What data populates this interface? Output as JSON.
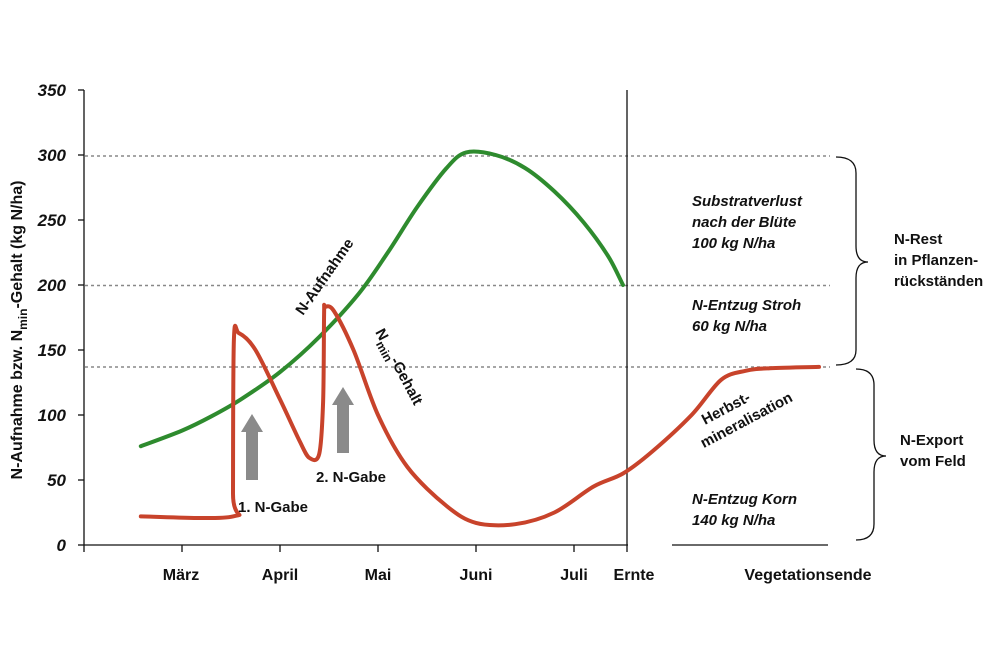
{
  "chart_data": {
    "type": "line",
    "ylabel": "N-Aufnahme bzw. N",
    "ylabel_sub": "min",
    "ylabel_tail": "-Gehalt (kg N/ha)",
    "ylim": [
      0,
      350
    ],
    "yticks": [
      "0",
      "50",
      "100",
      "150",
      "200",
      "250",
      "300",
      "350"
    ],
    "xticks": [
      "März",
      "April",
      "Mai",
      "Juni",
      "Juli",
      "Ernte",
      "Vegetationsende"
    ],
    "reference_lines": [
      300,
      200,
      137
    ],
    "series": [
      {
        "name": "N-Aufnahme",
        "color": "#2e8b2e",
        "x": [
          -0.42,
          0.0,
          0.3,
          0.6,
          1.0,
          1.4,
          1.8,
          2.1,
          2.4,
          2.7,
          2.9,
          3.2,
          3.5,
          3.8,
          4.1,
          4.35,
          4.5
        ],
        "values": [
          76,
          88,
          99,
          112,
          133,
          160,
          193,
          225,
          260,
          290,
          302,
          300,
          290,
          272,
          248,
          222,
          200
        ]
      },
      {
        "name_main": "N",
        "name_sub": "min",
        "name_tail": "-Gehalt",
        "color": "#c8432b",
        "x": [
          -0.42,
          0.52,
          0.52,
          0.53,
          0.58,
          0.75,
          1.0,
          1.2,
          1.3,
          1.4,
          1.44,
          1.45,
          1.46,
          1.55,
          1.75,
          2.0,
          2.3,
          2.7,
          3.0,
          3.4,
          3.8,
          4.2,
          4.5,
          4.8,
          5.2,
          5.5,
          5.75,
          6.0,
          6.5
        ],
        "values": [
          22,
          22,
          40,
          158,
          163,
          150,
          112,
          80,
          67,
          70,
          110,
          178,
          183,
          180,
          150,
          100,
          60,
          30,
          17,
          16,
          25,
          45,
          55,
          72,
          100,
          127,
          134,
          136,
          137
        ]
      }
    ],
    "annotations": {
      "substratverlust": [
        "Substratverlust",
        "nach der Blüte",
        "100 kg N/ha"
      ],
      "entzug_stroh": [
        "N-Entzug Stroh",
        "60 kg N/ha"
      ],
      "entzug_korn": [
        "N-Entzug Korn",
        "140 kg N/ha"
      ],
      "n_rest": [
        "N-Rest",
        "in Pflanzen-",
        "rückständen"
      ],
      "n_export": [
        "N-Export",
        "vom Feld"
      ],
      "herbst": [
        "Herbst-",
        "mineralisation"
      ],
      "gabe1": "1. N-Gabe",
      "gabe2": "2. N-Gabe"
    }
  }
}
